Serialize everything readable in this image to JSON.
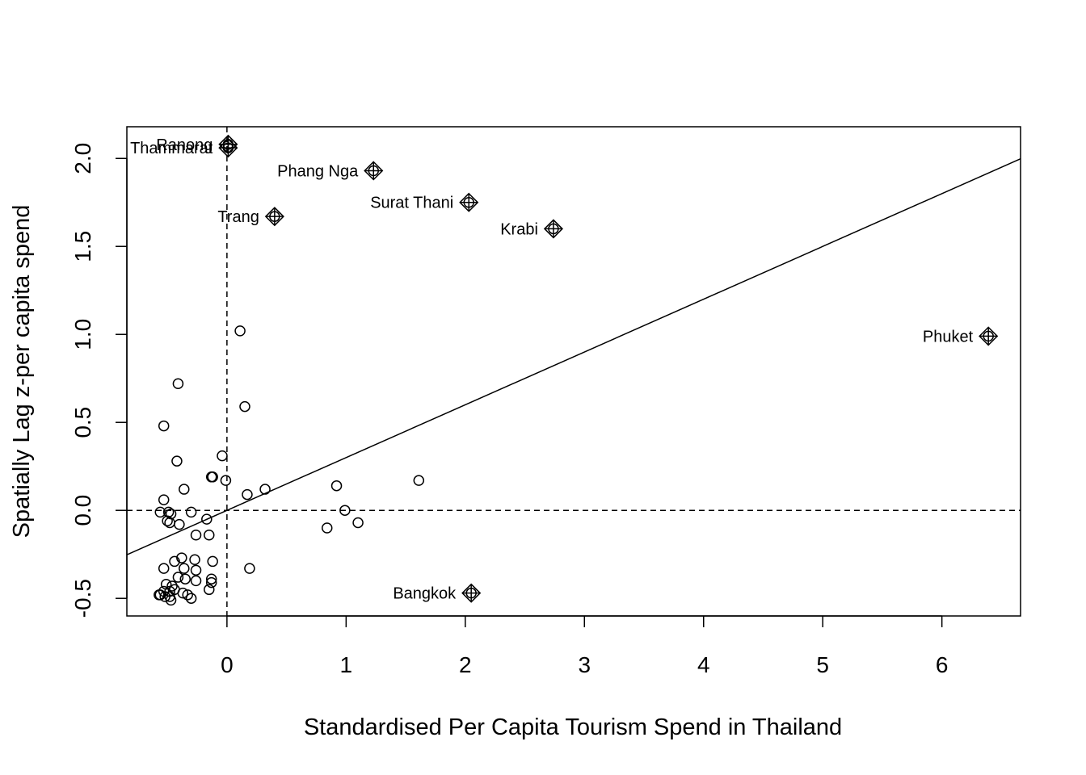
{
  "chart_data": {
    "type": "scatter",
    "title": "",
    "xlabel": "Standardised Per Capita Tourism Spend in Thailand",
    "ylabel": "Spatially Lag z-per capita spend",
    "xlim": [
      -0.84,
      6.66
    ],
    "ylim": [
      -0.6,
      2.18
    ],
    "x_ticks": [
      "0",
      "1",
      "2",
      "3",
      "4",
      "5",
      "6"
    ],
    "y_ticks": [
      "-0.5",
      "0.0",
      "0.5",
      "1.0",
      "1.5",
      "2.0"
    ],
    "reference_lines": {
      "x_mean": 0,
      "y_mean": 0,
      "style": "dashed"
    },
    "regression_line": {
      "intercept": 0.0,
      "slope": 0.3
    },
    "points": [
      {
        "x": 0.11,
        "y": 1.02
      },
      {
        "x": -0.41,
        "y": 0.72
      },
      {
        "x": 0.15,
        "y": 0.59
      },
      {
        "x": -0.53,
        "y": 0.48
      },
      {
        "x": -0.04,
        "y": 0.31
      },
      {
        "x": -0.42,
        "y": 0.28
      },
      {
        "x": -0.13,
        "y": 0.19
      },
      {
        "x": -0.12,
        "y": 0.19
      },
      {
        "x": -0.01,
        "y": 0.17
      },
      {
        "x": -0.36,
        "y": 0.12
      },
      {
        "x": 0.32,
        "y": 0.12
      },
      {
        "x": 0.17,
        "y": 0.09
      },
      {
        "x": 0.92,
        "y": 0.14
      },
      {
        "x": 1.61,
        "y": 0.17
      },
      {
        "x": 0.99,
        "y": 0.0
      },
      {
        "x": 1.1,
        "y": -0.07
      },
      {
        "x": 0.84,
        "y": -0.1
      },
      {
        "x": -0.53,
        "y": 0.06
      },
      {
        "x": -0.56,
        "y": -0.01
      },
      {
        "x": -0.49,
        "y": -0.01
      },
      {
        "x": -0.47,
        "y": -0.02
      },
      {
        "x": -0.3,
        "y": -0.01
      },
      {
        "x": -0.5,
        "y": -0.06
      },
      {
        "x": -0.48,
        "y": -0.07
      },
      {
        "x": -0.4,
        "y": -0.08
      },
      {
        "x": -0.17,
        "y": -0.05
      },
      {
        "x": -0.26,
        "y": -0.14
      },
      {
        "x": -0.15,
        "y": -0.14
      },
      {
        "x": -0.38,
        "y": -0.27
      },
      {
        "x": -0.44,
        "y": -0.29
      },
      {
        "x": -0.27,
        "y": -0.28
      },
      {
        "x": -0.12,
        "y": -0.29
      },
      {
        "x": -0.53,
        "y": -0.33
      },
      {
        "x": -0.36,
        "y": -0.33
      },
      {
        "x": -0.26,
        "y": -0.34
      },
      {
        "x": 0.19,
        "y": -0.33
      },
      {
        "x": -0.41,
        "y": -0.38
      },
      {
        "x": -0.35,
        "y": -0.39
      },
      {
        "x": -0.26,
        "y": -0.4
      },
      {
        "x": -0.13,
        "y": -0.39
      },
      {
        "x": -0.13,
        "y": -0.41
      },
      {
        "x": -0.51,
        "y": -0.42
      },
      {
        "x": -0.46,
        "y": -0.43
      },
      {
        "x": -0.44,
        "y": -0.45
      },
      {
        "x": -0.15,
        "y": -0.45
      },
      {
        "x": -0.53,
        "y": -0.46
      },
      {
        "x": -0.48,
        "y": -0.46
      },
      {
        "x": -0.56,
        "y": -0.48
      },
      {
        "x": -0.52,
        "y": -0.49
      },
      {
        "x": -0.48,
        "y": -0.49
      },
      {
        "x": -0.37,
        "y": -0.47
      },
      {
        "x": -0.33,
        "y": -0.48
      },
      {
        "x": -0.47,
        "y": -0.51
      },
      {
        "x": -0.3,
        "y": -0.5
      },
      {
        "x": -0.57,
        "y": -0.48
      }
    ],
    "influential_points": [
      {
        "label": "Ranong",
        "x": 0.01,
        "y": 2.08
      },
      {
        "label": "Thammarat",
        "x": 0.01,
        "y": 2.06
      },
      {
        "label": "Phang Nga",
        "x": 1.23,
        "y": 1.93
      },
      {
        "label": "Surat Thani",
        "x": 2.03,
        "y": 1.75
      },
      {
        "label": "Trang",
        "x": 0.4,
        "y": 1.67
      },
      {
        "label": "Krabi",
        "x": 2.74,
        "y": 1.6
      },
      {
        "label": "Phuket",
        "x": 6.39,
        "y": 0.99
      },
      {
        "label": "Bangkok",
        "x": 2.05,
        "y": -0.47
      }
    ]
  }
}
